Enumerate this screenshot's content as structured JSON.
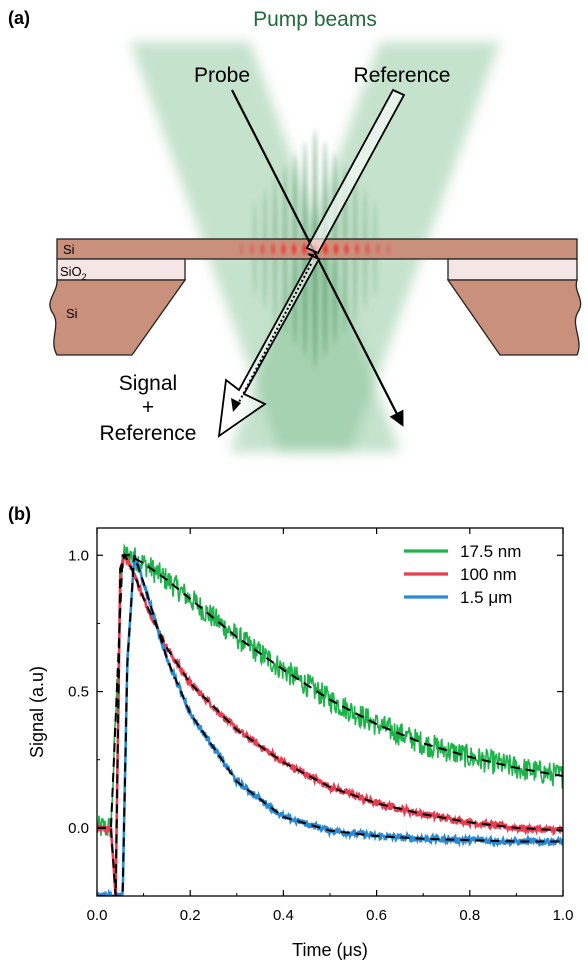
{
  "panel_a": {
    "label": "(a)",
    "pump_label": "Pump beams",
    "probe_label": "Probe",
    "reference_label": "Reference",
    "signal_label_line1": "Signal",
    "signal_label_line2": "+",
    "signal_label_line3": "Reference",
    "layer_si_top": "Si",
    "layer_sio2_base": "SiO",
    "layer_sio2_sub": "2",
    "layer_si_bottom": "Si",
    "colors": {
      "pump": "#7fbf8f",
      "pump_label": "#1f6b3a",
      "silicon": "#c9907c",
      "oxide": "#f3e6e4",
      "grating": "#e02020"
    }
  },
  "panel_b": {
    "label": "(b)"
  },
  "chart_data": {
    "type": "line",
    "xlabel": "Time (μs)",
    "ylabel": "Signal (a.u)",
    "xlim": [
      0.0,
      1.0
    ],
    "ylim": [
      -0.25,
      1.1
    ],
    "xticks": [
      0.0,
      0.2,
      0.4,
      0.6,
      0.8,
      1.0
    ],
    "xtick_labels": [
      "0.0",
      "0.2",
      "0.4",
      "0.6",
      "0.8",
      "1.0"
    ],
    "yticks": [
      0.0,
      0.5,
      1.0
    ],
    "ytick_labels": [
      "0.0",
      "0.5",
      "1.0"
    ],
    "legend_position": "top-right",
    "grid": false,
    "fit_line_style": "dashed black",
    "series": [
      {
        "name": "17.5 nm",
        "color": "#1db34a",
        "noisy": true,
        "x": [
          0.0,
          0.03,
          0.045,
          0.055,
          0.07,
          0.1,
          0.15,
          0.2,
          0.3,
          0.4,
          0.5,
          0.6,
          0.7,
          0.8,
          0.9,
          1.0
        ],
        "y": [
          0.0,
          0.0,
          0.6,
          1.0,
          1.0,
          0.97,
          0.91,
          0.84,
          0.7,
          0.58,
          0.47,
          0.38,
          0.31,
          0.26,
          0.22,
          0.19
        ]
      },
      {
        "name": "100 nm",
        "color": "#e83c50",
        "noisy": false,
        "x": [
          0.0,
          0.03,
          0.04,
          0.05,
          0.06,
          0.08,
          0.1,
          0.15,
          0.2,
          0.3,
          0.4,
          0.5,
          0.6,
          0.7,
          0.8,
          0.9,
          1.0
        ],
        "y": [
          0.0,
          0.0,
          -0.25,
          0.95,
          1.0,
          0.93,
          0.84,
          0.66,
          0.53,
          0.36,
          0.24,
          0.15,
          0.09,
          0.05,
          0.02,
          0.0,
          -0.01
        ]
      },
      {
        "name": "1.5 μm",
        "color": "#2a8bd4",
        "noisy": false,
        "x": [
          0.0,
          0.04,
          0.055,
          0.065,
          0.08,
          0.1,
          0.15,
          0.2,
          0.3,
          0.4,
          0.5,
          0.6,
          0.7,
          0.8,
          0.9,
          1.0
        ],
        "y": [
          -0.25,
          -0.25,
          -0.25,
          0.6,
          1.0,
          0.9,
          0.62,
          0.42,
          0.17,
          0.04,
          -0.01,
          -0.03,
          -0.04,
          -0.045,
          -0.05,
          -0.05
        ]
      }
    ]
  }
}
